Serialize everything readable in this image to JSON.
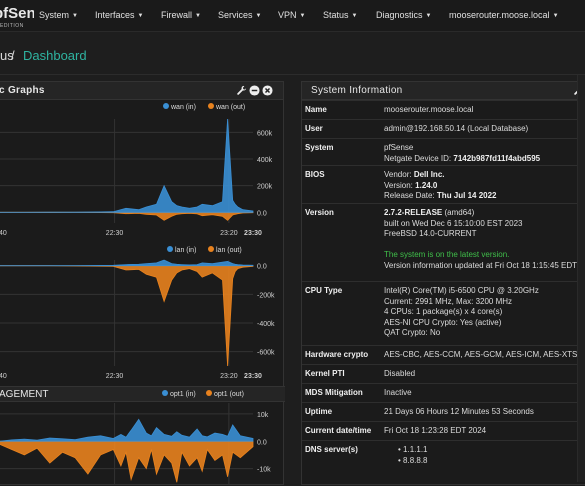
{
  "nav": {
    "brand": "pfSense",
    "brand_sub": "EDITION",
    "items": [
      {
        "label": "System"
      },
      {
        "label": "Interfaces"
      },
      {
        "label": "Firewall"
      },
      {
        "label": "Services"
      },
      {
        "label": "VPN"
      },
      {
        "label": "Status"
      },
      {
        "label": "Diagnostics"
      },
      {
        "label": "mooserouter.moose.local"
      }
    ]
  },
  "breadcrumb": {
    "previous": "us",
    "separator": "/",
    "current": "Dashboard"
  },
  "traffic": {
    "title": "c Graphs",
    "charts": [
      {
        "legend": [
          "wan (in)",
          "wan (out)"
        ],
        "yticks": [
          "600k",
          "400k",
          "200k",
          "0.0"
        ],
        "xticks": [
          "40",
          "22:30",
          "23:20",
          "23:30"
        ]
      },
      {
        "legend": [
          "lan (in)",
          "lan (out)"
        ],
        "yticks": [
          "0.0",
          "-200k",
          "-400k",
          "-600k"
        ],
        "xticks": [
          "40",
          "22:30",
          "23:20",
          "23:30"
        ]
      },
      {
        "title": "AGEMENT",
        "legend": [
          "opt1 (in)",
          "opt1 (out)"
        ],
        "yticks": [
          "10k",
          "0.0",
          "-10k"
        ],
        "xticks": []
      }
    ]
  },
  "colors": {
    "in": "#3a8fd4",
    "out": "#e8821e",
    "accent": "#2fb3a0",
    "green": "#3fbf4a"
  },
  "chart_data": [
    {
      "type": "area",
      "series": [
        {
          "name": "wan (in)"
        },
        {
          "name": "wan (out)"
        }
      ],
      "ylim": [
        -80000,
        700000
      ],
      "grid": true,
      "legend": "top-right",
      "x": [
        0,
        0.1,
        0.2,
        0.3,
        0.4,
        0.45,
        0.5,
        0.55,
        0.58,
        0.62,
        0.65,
        0.68,
        0.7,
        0.72,
        0.75,
        0.78,
        0.8,
        0.84,
        0.88,
        0.9,
        0.92,
        0.93,
        0.94,
        0.96,
        1.0
      ],
      "in": [
        0,
        0,
        2000,
        1000,
        3000,
        5000,
        30000,
        20000,
        40000,
        60000,
        200000,
        80000,
        50000,
        40000,
        30000,
        40000,
        60000,
        50000,
        80000,
        700000,
        90000,
        60000,
        40000,
        20000,
        10000
      ],
      "out": [
        0,
        0,
        -1000,
        0,
        -2000,
        -3000,
        -10000,
        -8000,
        -15000,
        -20000,
        -60000,
        -30000,
        -15000,
        -10000,
        -8000,
        -12000,
        -25000,
        -18000,
        -30000,
        -60000,
        -20000,
        -15000,
        -10000,
        -5000,
        -3000
      ]
    },
    {
      "type": "area",
      "series": [
        {
          "name": "lan (in)"
        },
        {
          "name": "lan (out)"
        }
      ],
      "ylim": [
        -700000,
        40000
      ],
      "grid": true,
      "legend": "top-right",
      "x": [
        0,
        0.1,
        0.2,
        0.3,
        0.45,
        0.5,
        0.55,
        0.58,
        0.62,
        0.65,
        0.68,
        0.7,
        0.72,
        0.75,
        0.78,
        0.8,
        0.84,
        0.88,
        0.9,
        0.92,
        0.93,
        0.94,
        0.96,
        1.0
      ],
      "in": [
        0,
        0,
        0,
        1000,
        3000,
        8000,
        10000,
        15000,
        20000,
        40000,
        15000,
        10000,
        8000,
        6000,
        8000,
        20000,
        15000,
        25000,
        30000,
        15000,
        10000,
        8000,
        5000,
        3000
      ],
      "out": [
        0,
        0,
        0,
        -2000,
        -5000,
        -30000,
        -25000,
        -60000,
        -80000,
        -250000,
        -100000,
        -50000,
        -30000,
        -20000,
        -40000,
        -80000,
        -50000,
        -100000,
        -700000,
        -90000,
        -40000,
        -20000,
        -10000,
        -5000
      ]
    },
    {
      "type": "area",
      "series": [
        {
          "name": "opt1 (in)"
        },
        {
          "name": "opt1 (out)"
        }
      ],
      "ylim": [
        -16000,
        14000
      ],
      "grid": true,
      "legend": "top-right",
      "x": [
        0,
        0.05,
        0.1,
        0.15,
        0.2,
        0.25,
        0.3,
        0.35,
        0.4,
        0.45,
        0.48,
        0.5,
        0.52,
        0.55,
        0.58,
        0.6,
        0.62,
        0.65,
        0.68,
        0.7,
        0.72,
        0.75,
        0.78,
        0.8,
        0.82,
        0.85,
        0.88,
        0.9,
        0.92,
        0.95,
        1.0
      ],
      "in": [
        0,
        500,
        800,
        400,
        1200,
        900,
        600,
        1500,
        2000,
        1000,
        2500,
        1500,
        4000,
        8000,
        3000,
        2000,
        5000,
        2500,
        1800,
        3500,
        2200,
        1500,
        4500,
        2000,
        1600,
        3000,
        2500,
        1800,
        6000,
        2000,
        1000
      ],
      "out": [
        -1000,
        -3000,
        -5000,
        -2500,
        -8000,
        -4000,
        -6000,
        -12000,
        -5000,
        -3000,
        -9000,
        -4000,
        -14000,
        -6000,
        -10000,
        -3000,
        -12000,
        -5000,
        -8000,
        -15000,
        -4000,
        -9000,
        -6000,
        -11000,
        -3000,
        -7000,
        -5000,
        -13000,
        -4000,
        -6000,
        -2000
      ]
    }
  ],
  "sysinfo": {
    "title": "System Information",
    "rows": [
      {
        "label": "Name",
        "lines": [
          "mooserouter.moose.local"
        ]
      },
      {
        "label": "User",
        "lines": [
          "admin@192.168.50.14 (Local Database)"
        ]
      },
      {
        "label": "System",
        "lines": [
          "pfSense",
          "Netgate Device ID: 7142b987fd11f4abd595"
        ]
      },
      {
        "label": "BIOS",
        "lines": [
          "Vendor: Dell Inc.",
          "Version: 1.24.0",
          "Release Date: Thu Jul 14 2022"
        ]
      },
      {
        "label": "Version",
        "lines": [
          "2.7.2-RELEASE (amd64)",
          "built on Wed Dec 6 15:10:00 EST 2023",
          "FreeBSD 14.0-CURRENT",
          "",
          "The system is on the latest version.",
          "Version information updated at Fri Oct 18 1:15:45 EDT 20"
        ]
      },
      {
        "label": "CPU Type",
        "lines": [
          "Intel(R) Core(TM) i5-6500 CPU @ 3.20GHz",
          "Current: 2991 MHz, Max: 3200 MHz",
          "4 CPUs: 1 package(s) x 4 core(s)",
          "AES-NI CPU Crypto: Yes (active)",
          "QAT Crypto: No"
        ]
      },
      {
        "label": "Hardware crypto",
        "lines": [
          "AES-CBC, AES-CCM, AES-GCM, AES-ICM, AES-XTS"
        ]
      },
      {
        "label": "Kernel PTI",
        "lines": [
          "Disabled"
        ]
      },
      {
        "label": "MDS Mitigation",
        "lines": [
          "Inactive"
        ]
      },
      {
        "label": "Uptime",
        "lines": [
          "21 Days 06 Hours 12 Minutes 53 Seconds"
        ]
      },
      {
        "label": "Current date/time",
        "lines": [
          "Fri Oct 18 1:23:28 EDT 2024"
        ]
      },
      {
        "label": "DNS server(s)",
        "lines": [
          "1.1.1.1",
          "8.8.8.8"
        ]
      }
    ]
  }
}
